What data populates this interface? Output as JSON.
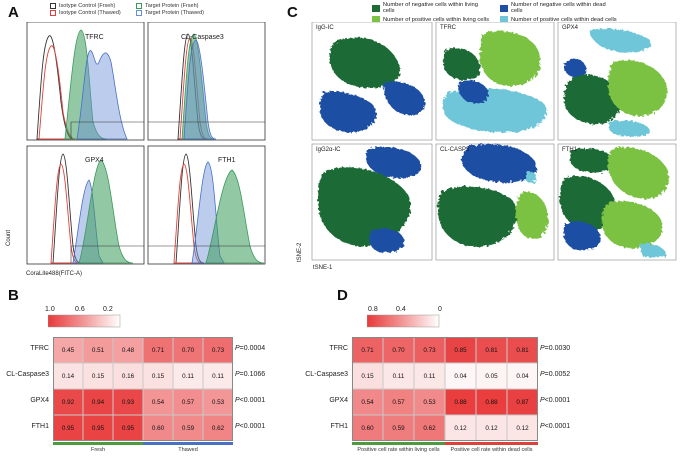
{
  "panels": {
    "a": "A",
    "b": "B",
    "c": "C",
    "d": "D"
  },
  "colors": {
    "iso_fresh": "#333333",
    "iso_thawed": "#e0403a",
    "tgt_fresh": "#3a9a5b",
    "tgt_thawed": "#6a8fd8",
    "neg_living": "#1e6b35",
    "pos_living": "#7cc242",
    "neg_dead": "#1f4fa3",
    "pos_dead": "#6ec6d8"
  },
  "flow": {
    "legend": [
      {
        "label": "Isotype Control (Frseh)",
        "color": "#333333"
      },
      {
        "label": "Target Protein (Frseh)",
        "color": "#3a9a5b"
      },
      {
        "label": "Isotype Control (Thawed)",
        "color": "#e0403a"
      },
      {
        "label": "Target Protein (Thawed)",
        "color": "#6a8fd8"
      }
    ],
    "plots": [
      {
        "name": "TFRC"
      },
      {
        "name": "CL-Caspase3"
      },
      {
        "name": "GPX4"
      },
      {
        "name": "FTH1"
      }
    ],
    "ylabel": "Count",
    "xlabel": "CoraLite488(FITC-A)"
  },
  "tsne": {
    "legend": [
      {
        "label": "Number of negative cells within living cells",
        "color": "#1e6b35"
      },
      {
        "label": "Number of negative cells within dead cells",
        "color": "#1f4fa3"
      },
      {
        "label": "Number of positive cells within living cells",
        "color": "#7cc242"
      },
      {
        "label": "Number of positive cells within dead cells",
        "color": "#6ec6d8"
      }
    ],
    "plots": [
      {
        "name": "IgG-IC"
      },
      {
        "name": "TFRC"
      },
      {
        "name": "GPX4"
      },
      {
        "name": "IgG2α-IC"
      },
      {
        "name": "CL-CASP3"
      },
      {
        "name": "FTH1"
      }
    ],
    "xlabel": "tSNE-1",
    "ylabel": "tSNE-2"
  },
  "heatmap_b": {
    "scale_ticks": [
      "1.0",
      "0.6",
      "0.2"
    ],
    "rows": [
      "TFRC",
      "CL-Caspase3",
      "GPX4",
      "FTH1"
    ],
    "values": [
      [
        "0.45",
        "0.51",
        "0.48",
        "0.71",
        "0.70",
        "0.73"
      ],
      [
        "0.14",
        "0.15",
        "0.16",
        "0.15",
        "0.11",
        "0.11"
      ],
      [
        "0.92",
        "0.94",
        "0.93",
        "0.54",
        "0.57",
        "0.53"
      ],
      [
        "0.95",
        "0.95",
        "0.95",
        "0.60",
        "0.59",
        "0.62"
      ]
    ],
    "pvalues": [
      {
        "sym": "P",
        "rest": "=0.0004"
      },
      {
        "sym": "P",
        "rest": "=0.1066"
      },
      {
        "sym": "P",
        "rest": "<0.0001"
      },
      {
        "sym": "P",
        "rest": "<0.0001"
      }
    ],
    "groups": [
      {
        "label": "Fresh",
        "color": "#4f9a3c"
      },
      {
        "label": "Thawed",
        "color": "#4a6fc4"
      }
    ]
  },
  "heatmap_d": {
    "scale_ticks": [
      "0.8",
      "0.4",
      "0"
    ],
    "rows": [
      "TFRC",
      "CL-Caspase3",
      "GPX4",
      "FTH1"
    ],
    "values": [
      [
        "0.71",
        "0.70",
        "0.73",
        "0.85",
        "0.81",
        "0.81"
      ],
      [
        "0.15",
        "0.11",
        "0.11",
        "0.04",
        "0.05",
        "0.04"
      ],
      [
        "0.54",
        "0.57",
        "0.53",
        "0.88",
        "0.88",
        "0.87"
      ],
      [
        "0.60",
        "0.59",
        "0.62",
        "0.12",
        "0.12",
        "0.12"
      ]
    ],
    "pvalues": [
      {
        "sym": "P",
        "rest": "=0.0030"
      },
      {
        "sym": "P",
        "rest": "=0.0052"
      },
      {
        "sym": "P",
        "rest": "<0.0001"
      },
      {
        "sym": "P",
        "rest": "<0.0001"
      }
    ],
    "groups": [
      {
        "label": "Positive cell rate within living cells",
        "color": "#4f9a3c"
      },
      {
        "label": "Positive cell rate within dead cells",
        "color": "#e0403a"
      }
    ]
  }
}
